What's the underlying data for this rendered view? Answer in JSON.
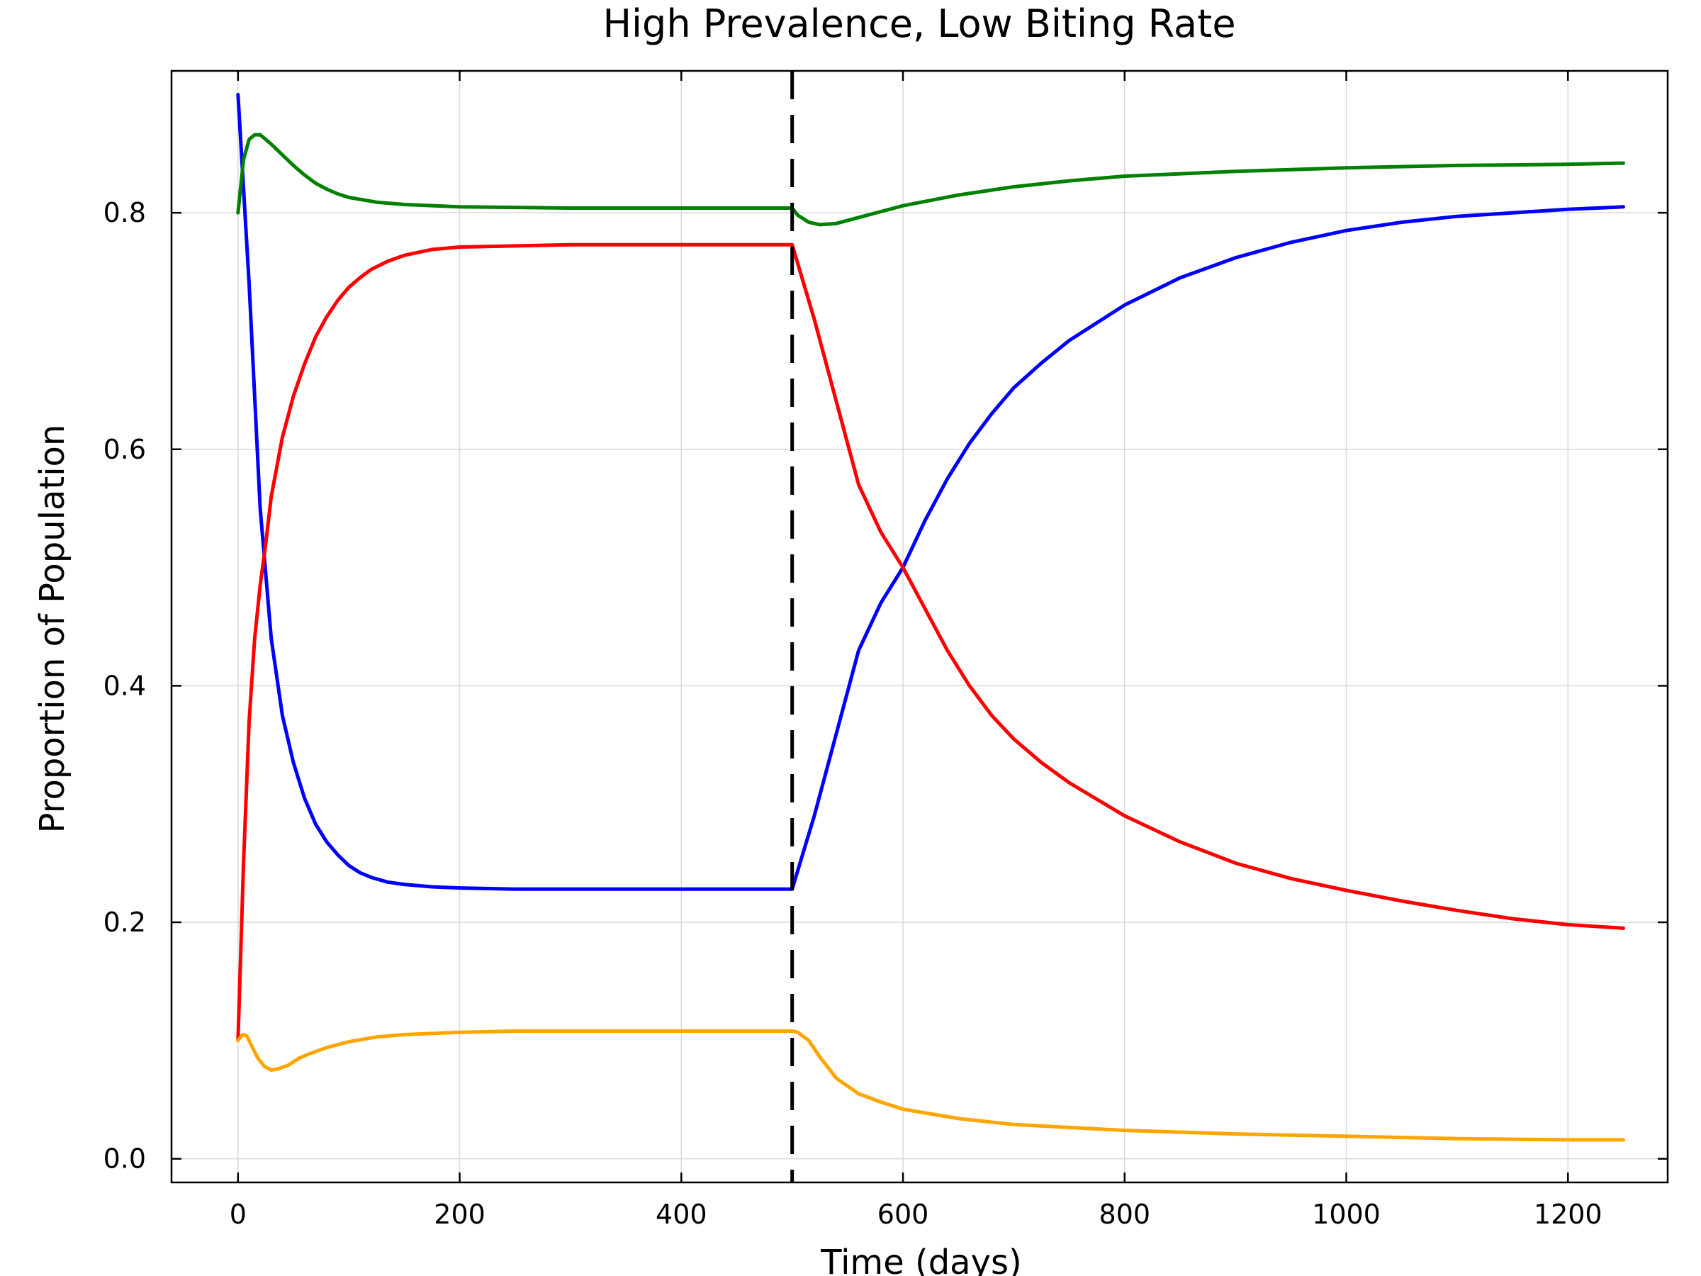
{
  "chart_data": {
    "type": "line",
    "title": "High Prevalence, Low Biting Rate",
    "xlabel": "Time (days)",
    "ylabel": "Proportion of Population",
    "xlim": [
      -60,
      1290
    ],
    "ylim": [
      -0.02,
      0.92
    ],
    "x_ticks": [
      0,
      200,
      400,
      600,
      800,
      1000,
      1200
    ],
    "y_ticks": [
      0.0,
      0.2,
      0.4,
      0.6,
      0.8
    ],
    "x_tick_labels": [
      "0",
      "200",
      "400",
      "600",
      "800",
      "1000",
      "1200"
    ],
    "y_tick_labels": [
      "0.0",
      "0.2",
      "0.4",
      "0.6",
      "0.8"
    ],
    "grid": true,
    "vertical_line": {
      "x": 500,
      "style": "dashed",
      "color": "#000000"
    },
    "series": [
      {
        "color": "#0000ff",
        "x": [
          0,
          10,
          20,
          30,
          40,
          50,
          60,
          70,
          80,
          90,
          100,
          110,
          120,
          135,
          150,
          175,
          200,
          250,
          300,
          400,
          500,
          500,
          520,
          540,
          560,
          580,
          600,
          620,
          640,
          660,
          680,
          700,
          725,
          750,
          800,
          850,
          900,
          950,
          1000,
          1050,
          1100,
          1150,
          1200,
          1250
        ],
        "y": [
          0.9,
          0.74,
          0.55,
          0.44,
          0.375,
          0.335,
          0.305,
          0.283,
          0.268,
          0.257,
          0.248,
          0.242,
          0.238,
          0.234,
          0.232,
          0.23,
          0.229,
          0.228,
          0.228,
          0.228,
          0.228,
          0.228,
          0.29,
          0.36,
          0.43,
          0.47,
          0.5,
          0.54,
          0.575,
          0.605,
          0.63,
          0.652,
          0.673,
          0.692,
          0.722,
          0.745,
          0.762,
          0.775,
          0.785,
          0.792,
          0.797,
          0.8,
          0.803,
          0.805
        ]
      },
      {
        "color": "#ff0000",
        "x": [
          0,
          5,
          10,
          15,
          20,
          25,
          30,
          40,
          50,
          60,
          70,
          80,
          90,
          100,
          110,
          120,
          135,
          150,
          175,
          200,
          250,
          300,
          400,
          500,
          500,
          520,
          540,
          560,
          580,
          600,
          620,
          640,
          660,
          680,
          700,
          725,
          750,
          800,
          850,
          900,
          950,
          1000,
          1050,
          1100,
          1150,
          1200,
          1250
        ],
        "y": [
          0.1,
          0.25,
          0.37,
          0.44,
          0.485,
          0.52,
          0.56,
          0.61,
          0.645,
          0.672,
          0.695,
          0.712,
          0.726,
          0.737,
          0.745,
          0.752,
          0.759,
          0.764,
          0.769,
          0.771,
          0.772,
          0.773,
          0.773,
          0.773,
          0.773,
          0.71,
          0.64,
          0.57,
          0.53,
          0.5,
          0.465,
          0.43,
          0.4,
          0.375,
          0.355,
          0.335,
          0.318,
          0.29,
          0.268,
          0.25,
          0.237,
          0.227,
          0.218,
          0.21,
          0.203,
          0.198,
          0.195
        ]
      },
      {
        "color": "#008000",
        "x": [
          0,
          5,
          10,
          15,
          20,
          25,
          30,
          40,
          50,
          60,
          70,
          80,
          90,
          100,
          125,
          150,
          200,
          300,
          400,
          500,
          505,
          515,
          525,
          540,
          560,
          580,
          600,
          650,
          700,
          750,
          800,
          900,
          1000,
          1100,
          1200,
          1250
        ],
        "y": [
          0.8,
          0.845,
          0.862,
          0.866,
          0.866,
          0.862,
          0.858,
          0.849,
          0.84,
          0.832,
          0.825,
          0.82,
          0.816,
          0.813,
          0.809,
          0.807,
          0.805,
          0.804,
          0.804,
          0.804,
          0.798,
          0.792,
          0.79,
          0.791,
          0.796,
          0.801,
          0.806,
          0.815,
          0.822,
          0.827,
          0.831,
          0.835,
          0.838,
          0.84,
          0.841,
          0.842
        ]
      },
      {
        "color": "#ffa500",
        "x": [
          0,
          4,
          8,
          12,
          18,
          24,
          30,
          36,
          45,
          55,
          65,
          80,
          100,
          125,
          150,
          200,
          250,
          300,
          400,
          500,
          505,
          515,
          525,
          540,
          560,
          580,
          600,
          650,
          700,
          800,
          900,
          1000,
          1100,
          1200,
          1250
        ],
        "y": [
          0.1,
          0.105,
          0.104,
          0.096,
          0.085,
          0.078,
          0.075,
          0.076,
          0.079,
          0.085,
          0.089,
          0.094,
          0.099,
          0.103,
          0.105,
          0.107,
          0.108,
          0.108,
          0.108,
          0.108,
          0.107,
          0.1,
          0.086,
          0.068,
          0.055,
          0.048,
          0.042,
          0.034,
          0.029,
          0.024,
          0.021,
          0.019,
          0.017,
          0.016,
          0.016
        ]
      }
    ]
  }
}
